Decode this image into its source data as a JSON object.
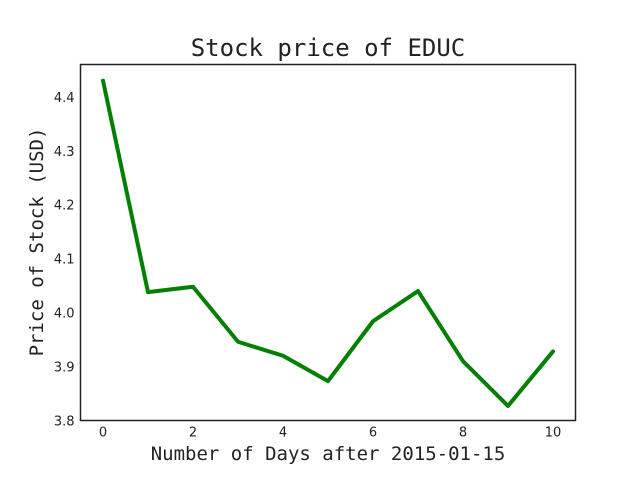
{
  "chart_data": {
    "type": "line",
    "title": "Stock price of EDUC",
    "xlabel": "Number of Days after 2015-01-15",
    "ylabel": "Price of Stock (USD)",
    "xlim": [
      -0.5,
      10.5
    ],
    "ylim": [
      3.8,
      4.46
    ],
    "xticks": [
      0,
      2,
      4,
      6,
      8,
      10
    ],
    "yticks": [
      3.8,
      3.9,
      4.0,
      4.1,
      4.2,
      4.3,
      4.4
    ],
    "x_tick_labels": [
      "0",
      "2",
      "4",
      "6",
      "8",
      "10"
    ],
    "y_tick_labels": [
      "3.8",
      "3.9",
      "4.0",
      "4.1",
      "4.2",
      "4.3",
      "4.4"
    ],
    "grid": false,
    "legend": "none",
    "series": [
      {
        "color": "#008000",
        "x": [
          0,
          1,
          2,
          3,
          4,
          5,
          6,
          7,
          8,
          9,
          10
        ],
        "y": [
          4.43,
          4.038,
          4.048,
          3.946,
          3.92,
          3.873,
          3.984,
          4.04,
          3.91,
          3.827,
          3.928
        ]
      }
    ]
  }
}
